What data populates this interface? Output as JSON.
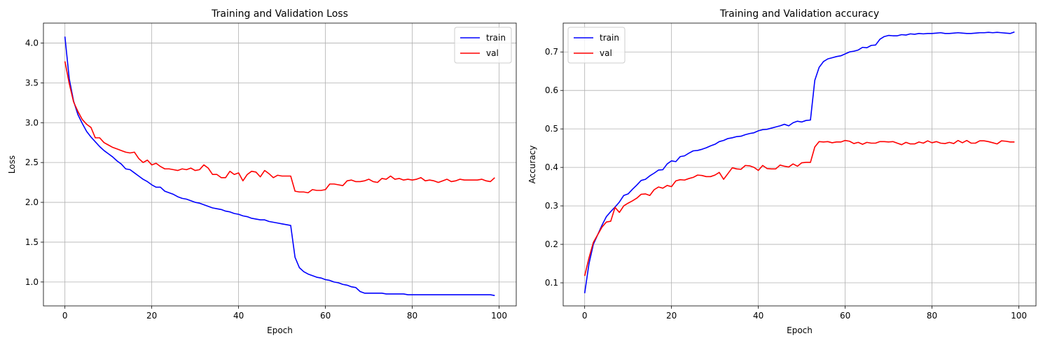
{
  "chart_data": [
    {
      "type": "line",
      "title": "Training and Validation Loss",
      "xlabel": "Epoch",
      "ylabel": "Loss",
      "xlim": [
        -4.95,
        103.95
      ],
      "ylim": [
        0.7,
        4.25
      ],
      "xticks": [
        0,
        20,
        40,
        60,
        80,
        100
      ],
      "xtick_labels": [
        "0",
        "20",
        "40",
        "60",
        "80",
        "100"
      ],
      "yticks": [
        1.0,
        1.5,
        2.0,
        2.5,
        3.0,
        3.5,
        4.0
      ],
      "ytick_labels": [
        "1.0",
        "1.5",
        "2.0",
        "2.5",
        "3.0",
        "3.5",
        "4.0"
      ],
      "grid": true,
      "legend_position": "upper right",
      "series": [
        {
          "name": "train",
          "color": "#0000ff",
          "values": [
            4.08,
            3.55,
            3.27,
            3.1,
            2.99,
            2.89,
            2.82,
            2.76,
            2.7,
            2.65,
            2.61,
            2.57,
            2.52,
            2.48,
            2.42,
            2.41,
            2.37,
            2.33,
            2.29,
            2.26,
            2.22,
            2.19,
            2.19,
            2.14,
            2.12,
            2.1,
            2.07,
            2.05,
            2.04,
            2.02,
            2.0,
            1.99,
            1.97,
            1.95,
            1.93,
            1.92,
            1.91,
            1.89,
            1.88,
            1.86,
            1.85,
            1.83,
            1.82,
            1.8,
            1.79,
            1.78,
            1.78,
            1.76,
            1.75,
            1.74,
            1.73,
            1.72,
            1.71,
            1.31,
            1.18,
            1.13,
            1.1,
            1.08,
            1.06,
            1.05,
            1.03,
            1.02,
            1.0,
            0.99,
            0.97,
            0.96,
            0.94,
            0.93,
            0.88,
            0.86,
            0.86,
            0.86,
            0.86,
            0.86,
            0.85,
            0.85,
            0.85,
            0.85,
            0.85,
            0.84,
            0.84,
            0.84,
            0.84,
            0.84,
            0.84,
            0.84,
            0.84,
            0.84,
            0.84,
            0.84,
            0.84,
            0.84,
            0.84,
            0.84,
            0.84,
            0.84,
            0.84,
            0.84,
            0.84,
            0.83
          ]
        },
        {
          "name": "val",
          "color": "#ff0000",
          "values": [
            3.77,
            3.49,
            3.26,
            3.14,
            3.04,
            2.98,
            2.94,
            2.81,
            2.81,
            2.75,
            2.72,
            2.69,
            2.67,
            2.65,
            2.63,
            2.62,
            2.63,
            2.55,
            2.5,
            2.53,
            2.47,
            2.49,
            2.45,
            2.42,
            2.42,
            2.41,
            2.4,
            2.42,
            2.41,
            2.43,
            2.4,
            2.41,
            2.47,
            2.43,
            2.35,
            2.35,
            2.31,
            2.31,
            2.39,
            2.35,
            2.37,
            2.27,
            2.35,
            2.39,
            2.38,
            2.32,
            2.4,
            2.36,
            2.31,
            2.34,
            2.33,
            2.33,
            2.33,
            2.14,
            2.13,
            2.13,
            2.12,
            2.16,
            2.15,
            2.15,
            2.16,
            2.23,
            2.23,
            2.22,
            2.21,
            2.27,
            2.28,
            2.26,
            2.26,
            2.27,
            2.29,
            2.26,
            2.25,
            2.3,
            2.29,
            2.33,
            2.29,
            2.3,
            2.28,
            2.29,
            2.28,
            2.29,
            2.31,
            2.27,
            2.28,
            2.27,
            2.25,
            2.27,
            2.29,
            2.26,
            2.27,
            2.29,
            2.28,
            2.28,
            2.28,
            2.28,
            2.29,
            2.27,
            2.26,
            2.31
          ]
        }
      ]
    },
    {
      "type": "line",
      "title": "Training and Validation accuracy",
      "xlabel": "Epoch",
      "ylabel": "Accuracy",
      "xlim": [
        -4.95,
        103.95
      ],
      "ylim": [
        0.04,
        0.775
      ],
      "xticks": [
        0,
        20,
        40,
        60,
        80,
        100
      ],
      "xtick_labels": [
        "0",
        "20",
        "40",
        "60",
        "80",
        "100"
      ],
      "yticks": [
        0.1,
        0.2,
        0.3,
        0.4,
        0.5,
        0.6,
        0.7
      ],
      "ytick_labels": [
        "0.1",
        "0.2",
        "0.3",
        "0.4",
        "0.5",
        "0.6",
        "0.7"
      ],
      "grid": true,
      "legend_position": "upper left",
      "series": [
        {
          "name": "train",
          "color": "#0000ff",
          "values": [
            0.073,
            0.15,
            0.2,
            0.225,
            0.25,
            0.272,
            0.285,
            0.297,
            0.31,
            0.327,
            0.331,
            0.343,
            0.354,
            0.366,
            0.369,
            0.378,
            0.385,
            0.393,
            0.394,
            0.409,
            0.417,
            0.415,
            0.428,
            0.43,
            0.437,
            0.443,
            0.444,
            0.447,
            0.451,
            0.456,
            0.46,
            0.467,
            0.47,
            0.475,
            0.477,
            0.48,
            0.481,
            0.485,
            0.488,
            0.49,
            0.495,
            0.498,
            0.499,
            0.502,
            0.505,
            0.508,
            0.512,
            0.508,
            0.516,
            0.52,
            0.518,
            0.522,
            0.523,
            0.626,
            0.66,
            0.675,
            0.682,
            0.685,
            0.688,
            0.69,
            0.695,
            0.7,
            0.702,
            0.705,
            0.712,
            0.711,
            0.717,
            0.718,
            0.733,
            0.74,
            0.743,
            0.742,
            0.742,
            0.745,
            0.744,
            0.747,
            0.746,
            0.748,
            0.747,
            0.748,
            0.748,
            0.749,
            0.75,
            0.748,
            0.748,
            0.749,
            0.75,
            0.749,
            0.748,
            0.748,
            0.749,
            0.75,
            0.75,
            0.751,
            0.75,
            0.751,
            0.75,
            0.749,
            0.748,
            0.752
          ]
        },
        {
          "name": "val",
          "color": "#ff0000",
          "values": [
            0.118,
            0.165,
            0.205,
            0.225,
            0.245,
            0.258,
            0.26,
            0.296,
            0.283,
            0.3,
            0.307,
            0.313,
            0.32,
            0.33,
            0.331,
            0.327,
            0.342,
            0.349,
            0.346,
            0.353,
            0.35,
            0.365,
            0.368,
            0.367,
            0.371,
            0.374,
            0.38,
            0.379,
            0.376,
            0.376,
            0.38,
            0.387,
            0.369,
            0.384,
            0.399,
            0.396,
            0.395,
            0.405,
            0.404,
            0.4,
            0.392,
            0.405,
            0.397,
            0.396,
            0.396,
            0.406,
            0.403,
            0.401,
            0.409,
            0.403,
            0.412,
            0.413,
            0.413,
            0.453,
            0.467,
            0.466,
            0.467,
            0.464,
            0.466,
            0.466,
            0.47,
            0.468,
            0.462,
            0.465,
            0.46,
            0.465,
            0.463,
            0.463,
            0.467,
            0.467,
            0.466,
            0.467,
            0.463,
            0.459,
            0.465,
            0.461,
            0.461,
            0.466,
            0.463,
            0.469,
            0.464,
            0.467,
            0.463,
            0.462,
            0.465,
            0.462,
            0.47,
            0.464,
            0.47,
            0.463,
            0.463,
            0.469,
            0.469,
            0.467,
            0.464,
            0.461,
            0.469,
            0.468,
            0.466,
            0.466
          ]
        }
      ]
    }
  ]
}
